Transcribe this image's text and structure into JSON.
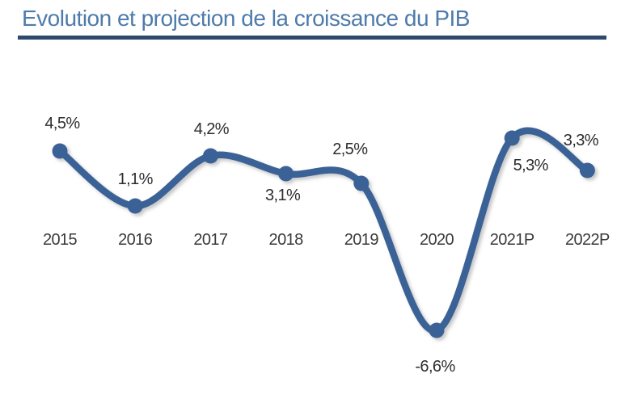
{
  "header": {
    "title": "Evolution et projection de la croissance du PIB",
    "title_color": "#4e7bab",
    "underline_color": "#2d4a6e"
  },
  "chart_data": {
    "type": "line",
    "title": "Evolution et projection de la croissance du PIB",
    "categories": [
      "2015",
      "2016",
      "2017",
      "2018",
      "2019",
      "2020",
      "2021P",
      "2022P"
    ],
    "values": [
      4.5,
      1.1,
      4.2,
      3.1,
      2.5,
      -6.6,
      5.3,
      3.3
    ],
    "point_labels": [
      "4,5%",
      "1,1%",
      "4,2%",
      "3,1%",
      "2,5%",
      "-6,6%",
      "5,3%",
      "3,3%"
    ],
    "unit": "%",
    "line_color": "#3a6296",
    "marker_color": "#3a6296",
    "label_color": "#2d2d2d",
    "axis_label_color": "#3a3a3a",
    "grid": false,
    "legend_position": "none",
    "xlabel": "",
    "ylabel": "",
    "ylim": [
      -8,
      7
    ],
    "curve": "smooth",
    "markers": "circle"
  }
}
